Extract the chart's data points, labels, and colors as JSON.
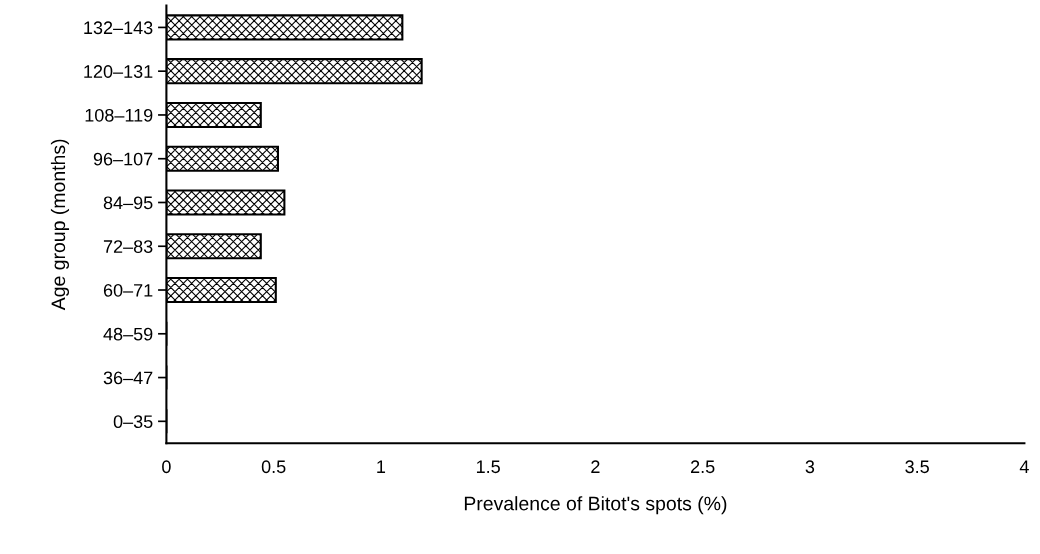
{
  "chart_data": {
    "type": "bar",
    "orientation": "horizontal",
    "xlabel": "Prevalence of Bitot's spots (%)",
    "ylabel": "Age group (months)",
    "categories": [
      "132–143",
      "120–131",
      "108–119",
      "96–107",
      "84–95",
      "72–83",
      "60–71",
      "48–59",
      "36–47",
      "0–35"
    ],
    "values": [
      1.1,
      1.19,
      0.44,
      0.52,
      0.55,
      0.44,
      0.51,
      0,
      0,
      0
    ],
    "color": "#000000",
    "xlim": [
      0,
      4
    ],
    "xticks": [
      0,
      0.5,
      1,
      1.5,
      2,
      2.5,
      3,
      3.5,
      4
    ],
    "grid": false
  }
}
